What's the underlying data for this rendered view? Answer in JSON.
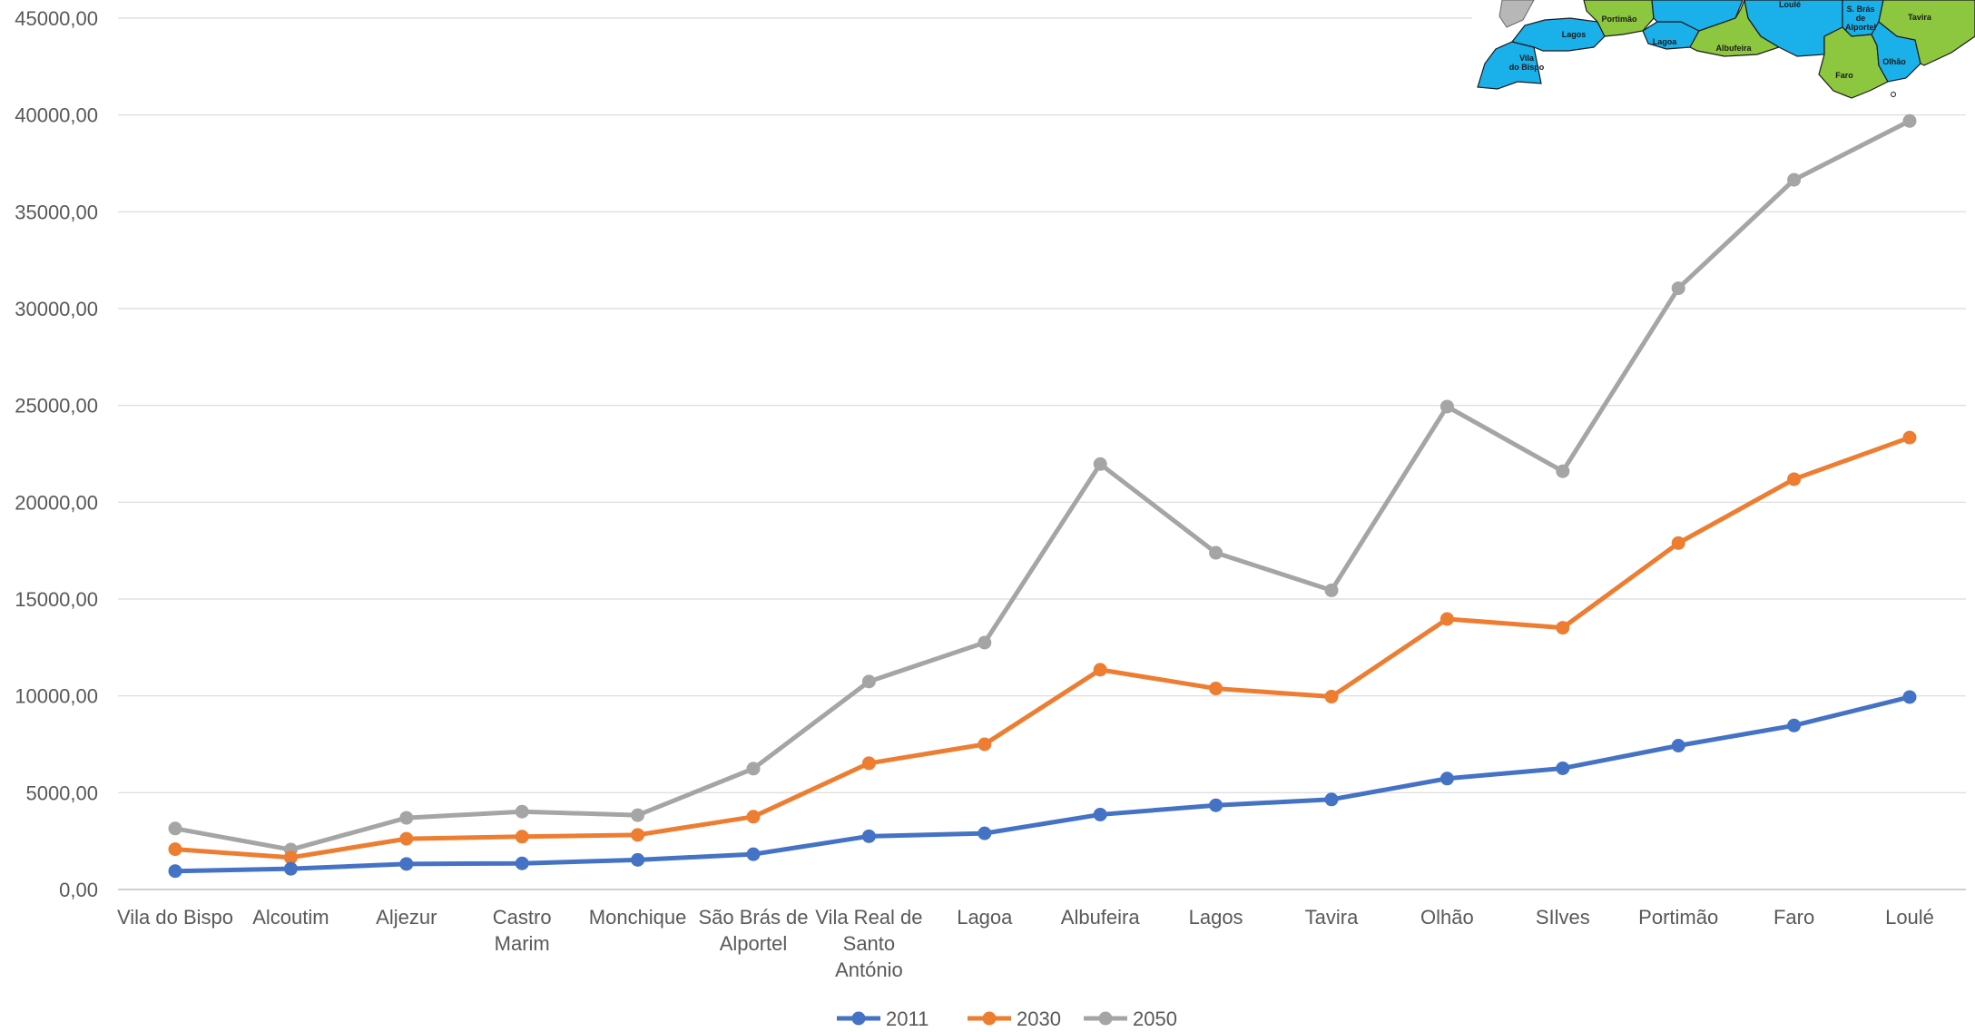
{
  "chart_data": {
    "type": "line",
    "categories": [
      [
        "Vila do Bispo"
      ],
      [
        "Alcoutim"
      ],
      [
        "Aljezur"
      ],
      [
        "Castro",
        "Marim"
      ],
      [
        "Monchique"
      ],
      [
        "São Brás de",
        "Alportel"
      ],
      [
        "Vila Real de",
        "Santo",
        "António"
      ],
      [
        "Lagoa"
      ],
      [
        "Albufeira"
      ],
      [
        "Lagos"
      ],
      [
        "Tavira"
      ],
      [
        "Olhão"
      ],
      [
        "SIlves"
      ],
      [
        "Portimão"
      ],
      [
        "Faro"
      ],
      [
        "Loulé"
      ]
    ],
    "series": [
      {
        "name": "2011",
        "color": "#4472C4",
        "values": [
          950,
          1070,
          1320,
          1350,
          1530,
          1820,
          2750,
          2900,
          3870,
          4350,
          4650,
          5730,
          6260,
          7430,
          8470,
          9940
        ]
      },
      {
        "name": "2030",
        "color": "#ED7D31",
        "values": [
          2080,
          1650,
          2620,
          2730,
          2820,
          3760,
          6520,
          7500,
          11350,
          10380,
          9960,
          13970,
          13520,
          17890,
          21190,
          23340
        ]
      },
      {
        "name": "2050",
        "color": "#A5A5A5",
        "values": [
          3150,
          2060,
          3700,
          4020,
          3840,
          6240,
          10740,
          12750,
          21970,
          17390,
          15450,
          24940,
          21600,
          31050,
          36650,
          39690
        ]
      }
    ],
    "y_ticks": [
      "0,00",
      "5000,00",
      "10000,00",
      "15000,00",
      "20000,00",
      "25000,00",
      "30000,00",
      "35000,00",
      "40000,00",
      "45000,00"
    ],
    "ylim": [
      0,
      45000
    ],
    "grid": true,
    "legend_position": "bottom"
  },
  "map_inset": {
    "labels": [
      "Loulé",
      "S. Brás de Alportel",
      "Tavira",
      "Portimão",
      "Lagos",
      "Lagoa",
      "Albufeira",
      "Vila do Bispo",
      "Olhão",
      "Faro"
    ]
  }
}
